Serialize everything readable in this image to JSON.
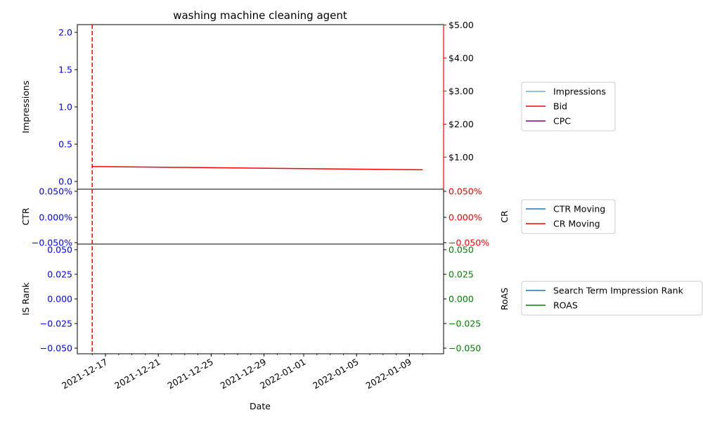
{
  "chart_data": {
    "type": "line",
    "title": "washing machine cleaning agent",
    "xlabel": "Date",
    "x_ticks": [
      "2021-12-17",
      "2021-12-21",
      "2021-12-25",
      "2021-12-29",
      "2022-01-01",
      "2022-01-05",
      "2022-01-09"
    ],
    "marker_date": "2021-12-16",
    "panels": [
      {
        "left_ylabel": "Impressions",
        "right_ylabel": "",
        "left_ticks": [
          "0.0",
          "0.5",
          "1.0",
          "1.5",
          "2.0"
        ],
        "right_ticks": [
          "$1.00",
          "$2.00",
          "$3.00",
          "$4.00",
          "$5.00"
        ],
        "left_tick_color": "#0000ff",
        "right_tick_color": "#000000",
        "right_spine_color": "#ff0000",
        "legend": [
          {
            "label": "Impressions",
            "color": "#6baed6"
          },
          {
            "label": "Bid",
            "color": "#ff0000"
          },
          {
            "label": "CPC",
            "color": "#800080"
          }
        ],
        "series": [
          {
            "name": "Bid",
            "axis": "right",
            "color": "#ff0000",
            "points": [
              [
                "2021-12-16",
                0.72
              ],
              [
                "2022-01-10",
                0.62
              ]
            ]
          }
        ]
      },
      {
        "left_ylabel": "CTR",
        "right_ylabel": "CR",
        "left_ticks": [
          "−0.050%",
          "0.000%",
          "0.050%"
        ],
        "right_ticks": [
          "−0.050%",
          "0.000%",
          "0.050%"
        ],
        "left_tick_color": "#0000ff",
        "right_tick_color": "#ff0000",
        "legend": [
          {
            "label": "CTR Moving",
            "color": "#1f77b4"
          },
          {
            "label": "CR Moving",
            "color": "#ff0000"
          }
        ],
        "series": []
      },
      {
        "left_ylabel": "IS Rank",
        "right_ylabel": "RoAS",
        "left_ticks": [
          "−0.050",
          "−0.025",
          "0.000",
          "0.025",
          "0.050"
        ],
        "right_ticks": [
          "−0.050",
          "−0.025",
          "0.000",
          "0.025",
          "0.050"
        ],
        "left_tick_color": "#0000ff",
        "right_tick_color": "#008000",
        "legend": [
          {
            "label": "Search Term Impression Rank",
            "color": "#1f77b4"
          },
          {
            "label": "ROAS",
            "color": "#008000"
          }
        ],
        "series": []
      }
    ]
  }
}
